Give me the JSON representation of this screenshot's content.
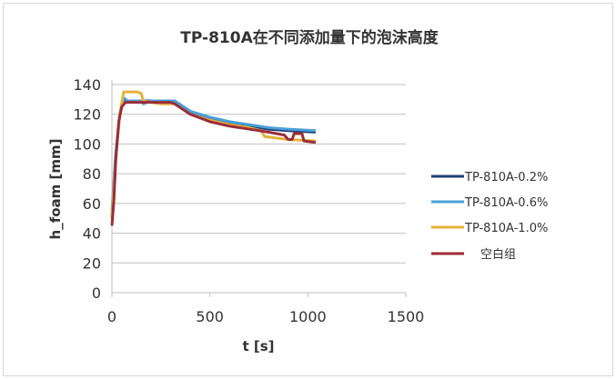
{
  "chart_data": {
    "type": "line",
    "title": "TP-810A在不同添加量下的泡沫高度",
    "xlabel": "t [s]",
    "ylabel": "h_foam [mm]",
    "xlim": [
      0,
      1500
    ],
    "ylim": [
      0,
      140
    ],
    "xticks": [
      0,
      500,
      1000,
      1500
    ],
    "yticks": [
      0,
      20,
      40,
      60,
      80,
      100,
      120,
      140
    ],
    "grid": "horizontal",
    "legend": "right",
    "series": [
      {
        "name": "TP-810A-0.2%",
        "color": "#1f3f73",
        "x": [
          0,
          20,
          40,
          60,
          80,
          150,
          200,
          320,
          400,
          500,
          600,
          700,
          800,
          900,
          1040
        ],
        "y": [
          50,
          92,
          120,
          130,
          129,
          129,
          129,
          129,
          122,
          117,
          114,
          112,
          110,
          109,
          108
        ]
      },
      {
        "name": "TP-810A-0.6%",
        "color": "#4a9fd8",
        "x": [
          0,
          20,
          40,
          60,
          80,
          150,
          160,
          200,
          320,
          400,
          500,
          600,
          700,
          800,
          900,
          1040
        ],
        "y": [
          55,
          95,
          120,
          131,
          129,
          129,
          127,
          129,
          129,
          122,
          118,
          115,
          113,
          111,
          110,
          109
        ]
      },
      {
        "name": "TP-810A-1.0%",
        "color": "#e3b23c",
        "x": [
          0,
          20,
          40,
          60,
          130,
          150,
          160,
          200,
          250,
          320,
          400,
          500,
          600,
          700,
          760,
          780,
          900,
          1040
        ],
        "y": [
          50,
          90,
          120,
          135,
          135,
          134,
          129,
          128,
          127,
          127,
          120,
          116,
          113,
          111,
          109,
          105,
          103,
          102
        ]
      },
      {
        "name": "空白组",
        "color": "#9b2d3a",
        "x": [
          0,
          10,
          20,
          35,
          50,
          70,
          150,
          300,
          320,
          400,
          500,
          600,
          700,
          800,
          880,
          900,
          920,
          930,
          970,
          980,
          1040
        ],
        "y": [
          45,
          62,
          90,
          115,
          125,
          128,
          128,
          128,
          127,
          120,
          115,
          112,
          110,
          108,
          106,
          103,
          103,
          107,
          107,
          102,
          101
        ]
      }
    ]
  }
}
